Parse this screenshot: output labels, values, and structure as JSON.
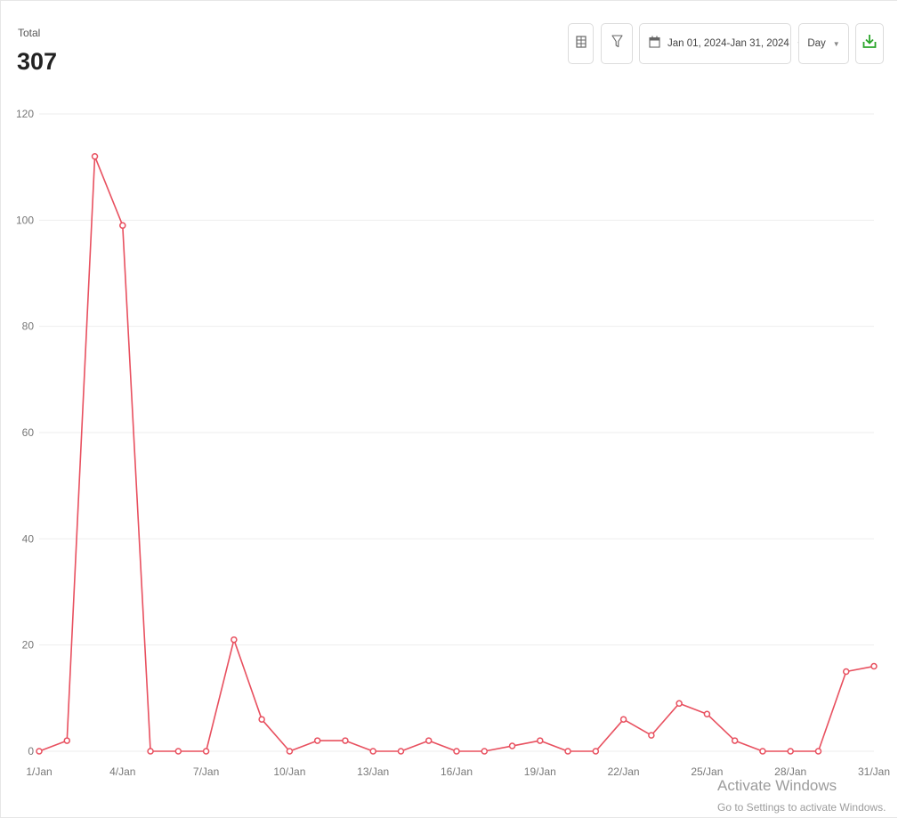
{
  "header": {
    "total_label": "Total",
    "total_value": "307"
  },
  "toolbar": {
    "date_range": "Jan 01, 2024-Jan 31, 2024",
    "granularity": "Day",
    "icons": {
      "table": "table-icon",
      "filter": "filter-icon",
      "calendar": "calendar-icon",
      "download": "download-icon"
    }
  },
  "colors": {
    "series": "#e8505f",
    "download_icon": "#2aa52a",
    "grid": "#eeeeee"
  },
  "watermark": {
    "title": "Activate Windows",
    "subtitle": "Go to Settings to activate Windows."
  },
  "chart_data": {
    "type": "line",
    "x": [
      "1/Jan",
      "2/Jan",
      "3/Jan",
      "4/Jan",
      "5/Jan",
      "6/Jan",
      "7/Jan",
      "8/Jan",
      "9/Jan",
      "10/Jan",
      "11/Jan",
      "12/Jan",
      "13/Jan",
      "14/Jan",
      "15/Jan",
      "16/Jan",
      "17/Jan",
      "18/Jan",
      "19/Jan",
      "20/Jan",
      "21/Jan",
      "22/Jan",
      "23/Jan",
      "24/Jan",
      "25/Jan",
      "26/Jan",
      "27/Jan",
      "28/Jan",
      "29/Jan",
      "30/Jan",
      "31/Jan"
    ],
    "x_tick_labels": [
      "1/Jan",
      "4/Jan",
      "7/Jan",
      "10/Jan",
      "13/Jan",
      "16/Jan",
      "19/Jan",
      "22/Jan",
      "25/Jan",
      "28/Jan",
      "31/Jan"
    ],
    "series": [
      {
        "values": [
          0,
          2,
          112,
          99,
          0,
          0,
          0,
          21,
          6,
          0,
          2,
          2,
          0,
          0,
          2,
          0,
          0,
          1,
          2,
          0,
          0,
          6,
          3,
          9,
          7,
          2,
          0,
          0,
          0,
          15,
          16
        ]
      }
    ],
    "ylim": [
      0,
      120
    ],
    "y_ticks": [
      0,
      20,
      40,
      60,
      80,
      100,
      120
    ],
    "grid": true,
    "legend": "none"
  }
}
